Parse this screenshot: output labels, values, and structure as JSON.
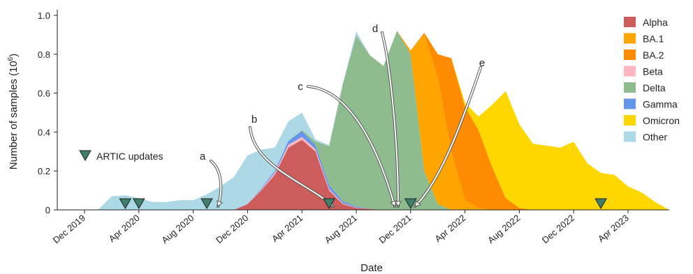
{
  "chart_data": {
    "type": "area",
    "xlabel": "Date",
    "ylabel": "Number of samples (10",
    "ylabel_sup": "6",
    "ylabel_close": ")",
    "ylim": [
      0,
      1.0
    ],
    "y_ticks": [
      0,
      0.2,
      0.4,
      0.6,
      0.8,
      1.0
    ],
    "y_tick_labels": [
      "0",
      "0.2",
      "0.4",
      "0.6",
      "0.8",
      "1.0"
    ],
    "x_ticks": [
      "2019-12",
      "2020-04",
      "2020-08",
      "2020-12",
      "2021-04",
      "2021-08",
      "2021-12",
      "2022-04",
      "2022-08",
      "2022-12",
      "2023-04"
    ],
    "x_tick_labels": [
      "Dec 2019",
      "Apr 2020",
      "Aug 2020",
      "Dec 2020",
      "Apr 2021",
      "Aug 2021",
      "Dec 2021",
      "Apr 2022",
      "Aug 2022",
      "Dec 2022",
      "Apr 2023"
    ],
    "x": [
      "2019-12",
      "2020-01",
      "2020-02",
      "2020-03",
      "2020-04",
      "2020-05",
      "2020-06",
      "2020-07",
      "2020-08",
      "2020-09",
      "2020-10",
      "2020-11",
      "2020-12",
      "2021-01",
      "2021-02",
      "2021-03",
      "2021-04",
      "2021-05",
      "2021-06",
      "2021-07",
      "2021-08",
      "2021-09",
      "2021-10",
      "2021-11",
      "2021-12",
      "2022-01",
      "2022-02",
      "2022-03",
      "2022-04",
      "2022-05",
      "2022-06",
      "2022-07",
      "2022-08",
      "2022-09",
      "2022-10",
      "2022-11",
      "2022-12",
      "2023-01",
      "2023-02",
      "2023-03",
      "2023-04",
      "2023-05",
      "2023-06",
      "2023-07"
    ],
    "series": [
      {
        "name": "Alpha",
        "color": "#cd5c5c",
        "values": [
          0,
          0,
          0,
          0,
          0,
          0,
          0,
          0,
          0,
          0,
          0,
          0,
          0.03,
          0.1,
          0.18,
          0.32,
          0.36,
          0.3,
          0.1,
          0.03,
          0.01,
          0.005,
          0,
          0,
          0,
          0,
          0,
          0,
          0,
          0,
          0,
          0,
          0,
          0,
          0,
          0,
          0,
          0,
          0,
          0,
          0,
          0,
          0,
          0
        ]
      },
      {
        "name": "Beta",
        "color": "#ffb6c1",
        "values": [
          0,
          0,
          0,
          0,
          0,
          0,
          0,
          0,
          0,
          0,
          0,
          0,
          0,
          0.005,
          0.01,
          0.015,
          0.015,
          0.012,
          0.008,
          0.004,
          0.002,
          0,
          0,
          0,
          0,
          0,
          0,
          0,
          0,
          0,
          0,
          0,
          0,
          0,
          0,
          0,
          0,
          0,
          0,
          0,
          0,
          0,
          0,
          0
        ]
      },
      {
        "name": "Gamma",
        "color": "#6495ed",
        "values": [
          0,
          0,
          0,
          0,
          0,
          0,
          0,
          0,
          0,
          0,
          0,
          0,
          0,
          0.005,
          0.01,
          0.02,
          0.03,
          0.02,
          0.02,
          0.01,
          0.005,
          0,
          0,
          0,
          0,
          0,
          0,
          0,
          0,
          0,
          0,
          0,
          0,
          0,
          0,
          0,
          0,
          0,
          0,
          0,
          0,
          0,
          0,
          0
        ]
      },
      {
        "name": "Delta",
        "color": "#8fbc8f",
        "values": [
          0,
          0,
          0,
          0,
          0,
          0,
          0,
          0,
          0,
          0,
          0,
          0,
          0,
          0,
          0,
          0,
          0.005,
          0.02,
          0.2,
          0.6,
          0.88,
          0.79,
          0.74,
          0.92,
          0.8,
          0.2,
          0.03,
          0,
          0,
          0,
          0,
          0,
          0,
          0,
          0,
          0,
          0,
          0,
          0,
          0,
          0,
          0,
          0,
          0
        ]
      },
      {
        "name": "BA.1",
        "color": "#ffa500",
        "values": [
          0,
          0,
          0,
          0,
          0,
          0,
          0,
          0,
          0,
          0,
          0,
          0,
          0,
          0,
          0,
          0,
          0,
          0,
          0,
          0,
          0,
          0,
          0,
          0,
          0.02,
          0.7,
          0.65,
          0.3,
          0.05,
          0.01,
          0,
          0,
          0,
          0,
          0,
          0,
          0,
          0,
          0,
          0,
          0,
          0,
          0,
          0
        ]
      },
      {
        "name": "BA.2",
        "color": "#ff8c00",
        "values": [
          0,
          0,
          0,
          0,
          0,
          0,
          0,
          0,
          0,
          0,
          0,
          0,
          0,
          0,
          0,
          0,
          0,
          0,
          0,
          0,
          0,
          0,
          0,
          0,
          0,
          0.01,
          0.12,
          0.48,
          0.48,
          0.4,
          0.22,
          0.06,
          0.01,
          0,
          0,
          0,
          0,
          0,
          0,
          0,
          0,
          0,
          0,
          0
        ]
      },
      {
        "name": "Omicron",
        "color": "#ffd700",
        "values": [
          0,
          0,
          0,
          0,
          0,
          0,
          0,
          0,
          0,
          0,
          0,
          0,
          0,
          0,
          0,
          0,
          0,
          0,
          0,
          0,
          0,
          0,
          0,
          0,
          0,
          0,
          0,
          0,
          0.02,
          0.07,
          0.32,
          0.55,
          0.43,
          0.34,
          0.33,
          0.32,
          0.35,
          0.24,
          0.19,
          0.18,
          0.12,
          0.09,
          0.04,
          0
        ]
      },
      {
        "name": "Other",
        "color": "#add8e6",
        "values": [
          0,
          0,
          0.07,
          0.075,
          0.06,
          0.04,
          0.04,
          0.05,
          0.05,
          0.08,
          0.12,
          0.17,
          0.25,
          0.2,
          0.12,
          0.1,
          0.09,
          0.01,
          0.005,
          0.005,
          0.02,
          0,
          0,
          0,
          0,
          0,
          0,
          0,
          0,
          0,
          0,
          0,
          0,
          0,
          0,
          0,
          0,
          0,
          0,
          0,
          0,
          0,
          0,
          0
        ]
      }
    ],
    "legend_order": [
      "Alpha",
      "BA.1",
      "BA.2",
      "Beta",
      "Delta",
      "Gamma",
      "Omicron",
      "Other"
    ],
    "legend_position": "top-right",
    "artic_updates": {
      "label": "ARTIC updates",
      "color": "#3f7f6a",
      "dates": [
        "2020-03",
        "2020-04",
        "2020-09",
        "2021-06",
        "2021-12",
        "2023-02"
      ]
    },
    "annotations": [
      {
        "label": "a",
        "target": "2020-09"
      },
      {
        "label": "b",
        "target": "2021-06"
      },
      {
        "label": "c",
        "target": "2021-12"
      },
      {
        "label": "d",
        "target": "2021-12"
      },
      {
        "label": "e",
        "target": "2021-12"
      }
    ]
  }
}
